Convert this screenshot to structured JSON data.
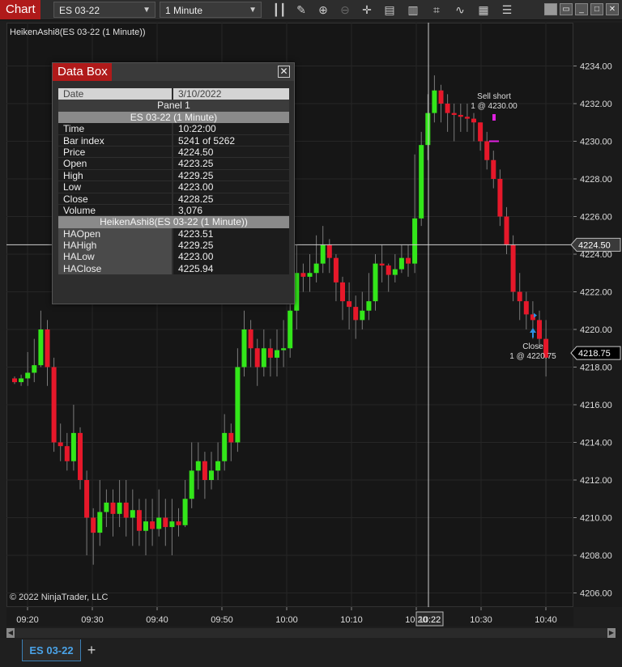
{
  "toolbar": {
    "chart_label": "Chart",
    "instrument": "ES 03-22",
    "interval": "1 Minute"
  },
  "indicator_label": "HeikenAshi8(ES 03-22 (1 Minute))",
  "copyright": "© 2022 NinjaTrader, LLC",
  "tab": {
    "label": "ES 03-22",
    "add_label": "+"
  },
  "data_box": {
    "title": "Data Box",
    "close_label": "✕",
    "date_label": "Date",
    "date_value": "3/10/2022",
    "panel_label": "Panel 1",
    "series_header": "ES 03-22 (1 Minute)",
    "rows": [
      {
        "key": "Time",
        "value": "10:22:00"
      },
      {
        "key": "Bar index",
        "value": "5241 of 5262"
      },
      {
        "key": "Price",
        "value": "4224.50"
      },
      {
        "key": "Open",
        "value": "4223.25"
      },
      {
        "key": "High",
        "value": "4229.25"
      },
      {
        "key": "Low",
        "value": "4223.00"
      },
      {
        "key": "Close",
        "value": "4228.25"
      },
      {
        "key": "Volume",
        "value": "3,076"
      }
    ],
    "indicator_header": "HeikenAshi8(ES 03-22 (1 Minute))",
    "ha_rows": [
      {
        "key": "HAOpen",
        "value": "4223.51"
      },
      {
        "key": "HAHigh",
        "value": "4229.25"
      },
      {
        "key": "HALow",
        "value": "4223.00"
      },
      {
        "key": "HAClose",
        "value": "4225.94"
      }
    ]
  },
  "annotations": {
    "sell_line1": "Sell short",
    "sell_line2": "1 @ 4230.00",
    "close_line1": "Close",
    "close_line2": "1 @ 4220.75"
  },
  "colors": {
    "up": "#33e61a",
    "down": "#e6182a",
    "wick": "#7a7a7a",
    "crosshair": "#cfcfcf"
  },
  "chart_data": {
    "type": "candlestick",
    "y_ticks": [
      "4234.00",
      "4232.00",
      "4230.00",
      "4228.00",
      "4226.00",
      "4224.00",
      "4222.00",
      "4220.00",
      "4218.00",
      "4216.00",
      "4214.00",
      "4212.00",
      "4210.00",
      "4208.00",
      "4206.00"
    ],
    "ylim": [
      4205.5,
      4235.5
    ],
    "x_ticks": [
      "09:20",
      "09:30",
      "09:40",
      "09:50",
      "10:00",
      "10:10",
      "10:20",
      "10:30",
      "10:40"
    ],
    "crosshair_time_label": "10:22",
    "crosshair_price_label": "4224.50",
    "crosshair_price": 4224.5,
    "last_price_label": "4218.75",
    "last_price": 4218.75,
    "sell_marker_price": 4230.0,
    "close_marker_price": 4220.75,
    "candles": [
      [
        4217.4,
        4217.2,
        4217.5,
        4217.1
      ],
      [
        4217.2,
        4217.4,
        4217.6,
        4217.0
      ],
      [
        4217.4,
        4217.7,
        4218.8,
        4217.0
      ],
      [
        4217.7,
        4218.1,
        4219.5,
        4217.2
      ],
      [
        4218.1,
        4220.0,
        4221.0,
        4218.0
      ],
      [
        4220.0,
        4218.0,
        4220.5,
        4217.0
      ],
      [
        4218.0,
        4214.0,
        4218.5,
        4213.5
      ],
      [
        4214.0,
        4213.8,
        4215.0,
        4213.0
      ],
      [
        4213.8,
        4213.0,
        4214.5,
        4212.5
      ],
      [
        4213.0,
        4214.5,
        4216.0,
        4212.5
      ],
      [
        4214.5,
        4212.0,
        4214.8,
        4211.5
      ],
      [
        4212.0,
        4210.0,
        4212.5,
        4208.0
      ],
      [
        4210.0,
        4209.2,
        4210.5,
        4207.5
      ],
      [
        4209.2,
        4210.3,
        4212.0,
        4208.5
      ],
      [
        4210.3,
        4210.8,
        4211.5,
        4209.5
      ],
      [
        4210.8,
        4210.2,
        4211.5,
        4209.0
      ],
      [
        4210.2,
        4210.8,
        4212.0,
        4209.5
      ],
      [
        4210.8,
        4210.0,
        4212.0,
        4209.0
      ],
      [
        4210.0,
        4210.4,
        4211.5,
        4208.5
      ],
      [
        4210.4,
        4209.3,
        4211.0,
        4208.5
      ],
      [
        4209.3,
        4209.8,
        4211.0,
        4208.0
      ],
      [
        4209.8,
        4209.4,
        4211.0,
        4208.5
      ],
      [
        4209.4,
        4210.0,
        4211.5,
        4209.0
      ],
      [
        4210.0,
        4209.5,
        4211.0,
        4208.5
      ],
      [
        4209.5,
        4209.8,
        4211.0,
        4208.0
      ],
      [
        4209.8,
        4209.6,
        4210.5,
        4209.0
      ],
      [
        4209.6,
        4211.0,
        4212.0,
        4209.5
      ],
      [
        4211.0,
        4212.5,
        4214.0,
        4210.5
      ],
      [
        4212.5,
        4213.0,
        4214.0,
        4211.5
      ],
      [
        4213.0,
        4212.0,
        4213.5,
        4211.0
      ],
      [
        4212.0,
        4212.5,
        4213.5,
        4211.5
      ],
      [
        4212.5,
        4213.0,
        4214.0,
        4212.0
      ],
      [
        4213.0,
        4214.5,
        4215.5,
        4212.5
      ],
      [
        4214.5,
        4214.0,
        4215.0,
        4213.0
      ],
      [
        4214.0,
        4218.0,
        4219.0,
        4213.5
      ],
      [
        4218.0,
        4220.0,
        4221.0,
        4217.5
      ],
      [
        4220.0,
        4219.0,
        4220.5,
        4218.0
      ],
      [
        4219.0,
        4218.0,
        4219.5,
        4217.0
      ],
      [
        4218.0,
        4219.0,
        4220.0,
        4217.5
      ],
      [
        4219.0,
        4218.5,
        4219.5,
        4217.5
      ],
      [
        4218.5,
        4218.9,
        4220.0,
        4217.5
      ],
      [
        4218.9,
        4219.0,
        4220.5,
        4218.0
      ],
      [
        4219.0,
        4221.0,
        4222.0,
        4218.5
      ],
      [
        4221.0,
        4223.0,
        4224.5,
        4220.0
      ],
      [
        4223.0,
        4222.8,
        4223.5,
        4222.0
      ],
      [
        4222.8,
        4223.0,
        4224.0,
        4222.0
      ],
      [
        4223.0,
        4223.5,
        4225.0,
        4222.5
      ],
      [
        4223.5,
        4224.5,
        4225.5,
        4223.0
      ],
      [
        4224.5,
        4223.8,
        4224.8,
        4223.0
      ],
      [
        4223.8,
        4222.5,
        4224.0,
        4221.5
      ],
      [
        4222.5,
        4221.5,
        4222.8,
        4220.5
      ],
      [
        4221.5,
        4221.2,
        4222.5,
        4220.0
      ],
      [
        4221.2,
        4220.5,
        4221.8,
        4219.5
      ],
      [
        4220.5,
        4221.0,
        4222.0,
        4220.0
      ],
      [
        4221.0,
        4221.5,
        4223.0,
        4220.5
      ],
      [
        4221.5,
        4223.5,
        4224.0,
        4221.0
      ],
      [
        4223.5,
        4223.4,
        4224.5,
        4222.5
      ],
      [
        4223.4,
        4222.9,
        4223.5,
        4222.0
      ],
      [
        4222.9,
        4223.2,
        4224.0,
        4222.5
      ],
      [
        4223.2,
        4223.8,
        4224.5,
        4223.0
      ],
      [
        4223.8,
        4223.5,
        4224.5,
        4222.8
      ],
      [
        4223.5,
        4225.9,
        4229.3,
        4223.0
      ],
      [
        4225.9,
        4229.8,
        4230.5,
        4225.5
      ],
      [
        4229.8,
        4231.5,
        4232.5,
        4229.0
      ],
      [
        4231.5,
        4232.7,
        4233.5,
        4231.0
      ],
      [
        4232.7,
        4232.0,
        4233.0,
        4231.0
      ],
      [
        4232.0,
        4231.5,
        4232.5,
        4230.5
      ],
      [
        4231.5,
        4231.4,
        4232.0,
        4230.0
      ],
      [
        4231.4,
        4231.3,
        4232.0,
        4230.5
      ],
      [
        4231.3,
        4231.2,
        4232.0,
        4230.5
      ],
      [
        4231.2,
        4231.0,
        4231.5,
        4230.0
      ],
      [
        4231.0,
        4230.0,
        4231.0,
        4229.5
      ],
      [
        4230.0,
        4229.0,
        4230.5,
        4228.5
      ],
      [
        4229.0,
        4228.0,
        4229.5,
        4227.5
      ],
      [
        4228.0,
        4226.0,
        4228.5,
        4225.5
      ],
      [
        4226.0,
        4224.5,
        4226.5,
        4224.0
      ],
      [
        4224.5,
        4222.0,
        4225.0,
        4221.5
      ],
      [
        4222.0,
        4221.5,
        4223.0,
        4220.5
      ],
      [
        4221.5,
        4220.8,
        4222.0,
        4220.0
      ],
      [
        4220.8,
        4220.5,
        4221.5,
        4219.5
      ],
      [
        4220.5,
        4219.5,
        4221.0,
        4219.0
      ],
      [
        4219.5,
        4218.5,
        4220.5,
        4217.5
      ]
    ]
  }
}
